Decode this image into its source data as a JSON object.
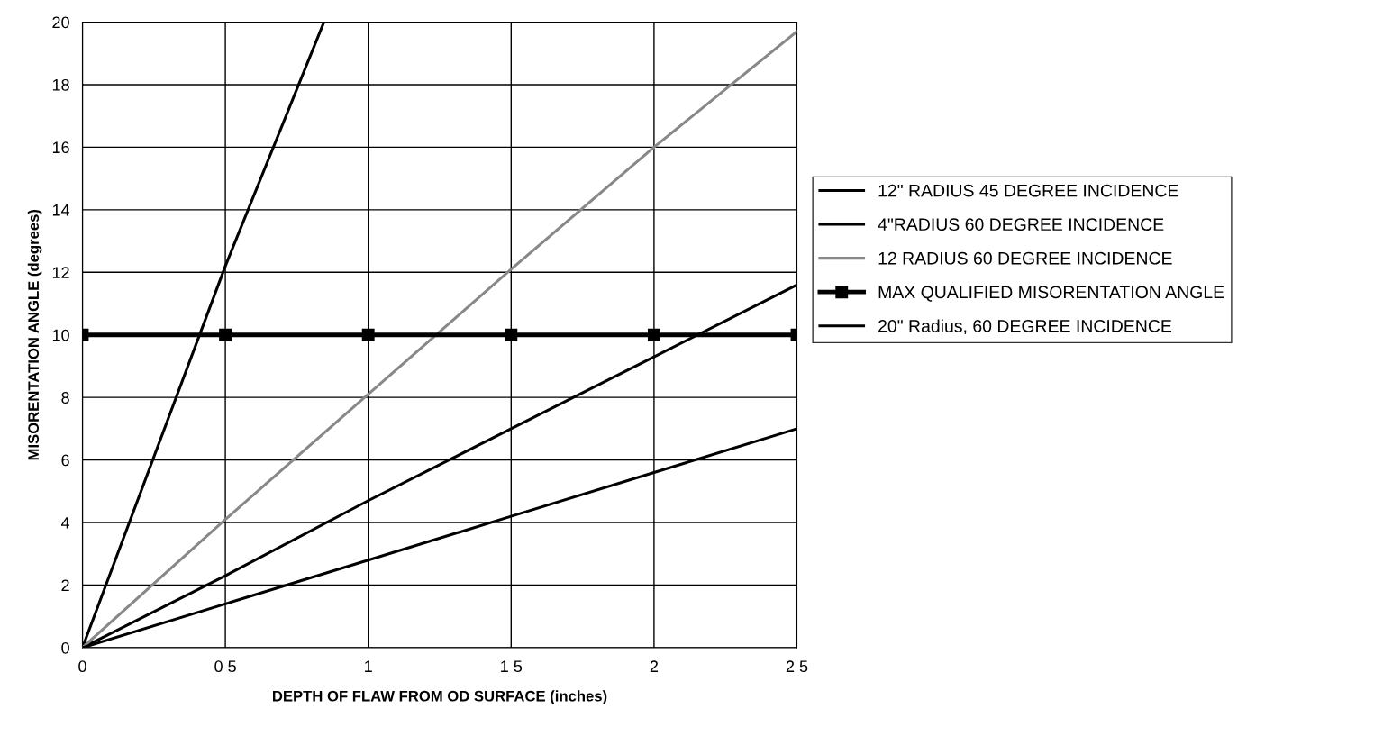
{
  "chart_data": {
    "type": "line",
    "xlabel": "DEPTH OF FLAW FROM OD SURFACE (inches)",
    "ylabel": "MISORENTATION ANGLE (degrees)",
    "x": [
      0,
      0.5,
      1,
      1.5,
      2,
      2.5
    ],
    "series": [
      {
        "name": "12\" RADIUS 45 DEGREE INCIDENCE",
        "color": "#000000",
        "values": [
          0,
          2.3,
          4.7,
          7.0,
          9.3,
          11.6
        ]
      },
      {
        "name": "4\"RADIUS 60 DEGREE INCIDENCE",
        "color": "#000000",
        "x": [
          0,
          0.5,
          0.845
        ],
        "values": [
          0,
          12.2,
          20
        ]
      },
      {
        "name": "12 RADIUS 60 DEGREE INCIDENCE",
        "color": "#888888",
        "values": [
          0,
          4.1,
          8.1,
          12.1,
          16.0,
          19.7
        ]
      },
      {
        "name": "MAX QUALIFIED MISORENTATION ANGLE",
        "color": "#000000",
        "marker": "square",
        "values": [
          10,
          10,
          10,
          10,
          10,
          10
        ]
      },
      {
        "name": "20\" Radius, 60 DEGREE INCIDENCE",
        "color": "#000000",
        "values": [
          0,
          1.4,
          2.8,
          4.2,
          5.6,
          7.0
        ]
      }
    ],
    "xlim": [
      0,
      2.5
    ],
    "xticks": [
      0,
      {
        "value": 0.5,
        "label": "0 5"
      },
      1,
      {
        "value": 1.5,
        "label": "1 5"
      },
      2,
      {
        "value": 2.5,
        "label": "2 5"
      }
    ],
    "ylim": [
      0,
      20
    ],
    "yticks": [
      0,
      2,
      4,
      6,
      8,
      10,
      12,
      14,
      16,
      18,
      20
    ],
    "grid": true,
    "legend": "right"
  }
}
